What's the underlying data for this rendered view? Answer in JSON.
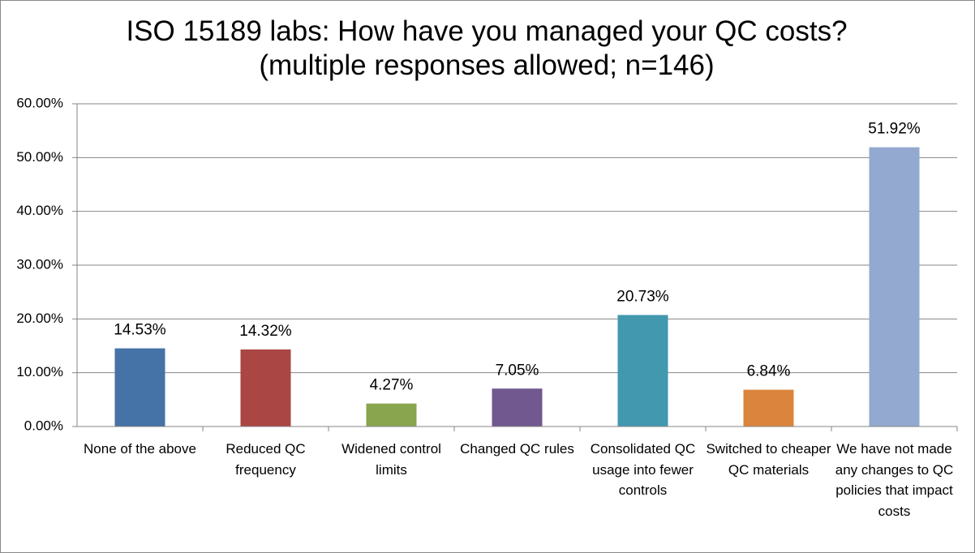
{
  "chart_data": {
    "type": "bar",
    "title": "ISO 15189 labs: How have you managed your QC costs? (multiple responses allowed; n=146)",
    "categories": [
      "None of the above",
      "Reduced QC frequency",
      "Widened control limits",
      "Changed QC rules",
      "Consolidated QC usage into fewer controls",
      "Switched to cheaper QC materials",
      "We have not made any changes to QC policies that impact costs"
    ],
    "values": [
      14.53,
      14.32,
      4.27,
      7.05,
      20.73,
      6.84,
      51.92
    ],
    "value_labels": [
      "14.53%",
      "14.32%",
      "4.27%",
      "7.05%",
      "20.73%",
      "6.84%",
      "51.92%"
    ],
    "colors": [
      "#4572a7",
      "#aa4643",
      "#89a54e",
      "#71588f",
      "#4198af",
      "#db843d",
      "#93a9cf"
    ],
    "ylim": [
      0,
      60
    ],
    "yticks": [
      {
        "value": 0,
        "label": "0.00%"
      },
      {
        "value": 10,
        "label": "10.00%"
      },
      {
        "value": 20,
        "label": "20.00%"
      },
      {
        "value": 30,
        "label": "30.00%"
      },
      {
        "value": 40,
        "label": "40.00%"
      },
      {
        "value": 50,
        "label": "50.00%"
      },
      {
        "value": 60,
        "label": "60.00%"
      }
    ],
    "grid": true
  }
}
